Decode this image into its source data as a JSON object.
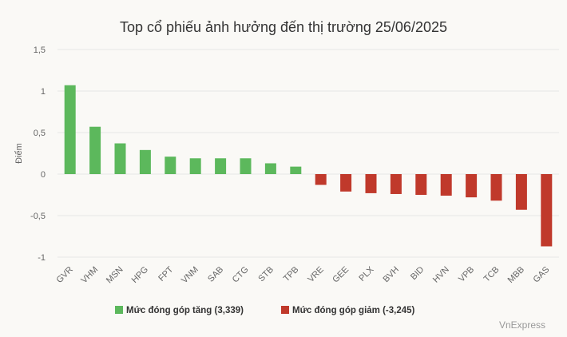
{
  "chart_data": {
    "type": "bar",
    "title": "Top cổ phiếu ảnh hưởng đến thị trường 25/06/2025",
    "ylabel": "Điểm",
    "xlabel": "",
    "ylim": [
      -1,
      1.5
    ],
    "yticks": [
      "1,5",
      "1",
      "0,5",
      "0",
      "-0,5",
      "-1"
    ],
    "ytick_values": [
      1.5,
      1,
      0.5,
      0,
      -0.5,
      -1
    ],
    "categories": [
      "GVR",
      "VHM",
      "MSN",
      "HPG",
      "FPT",
      "VNM",
      "SAB",
      "CTG",
      "STB",
      "TPB",
      "VRE",
      "GEE",
      "PLX",
      "BVH",
      "BID",
      "HVN",
      "VPB",
      "TCB",
      "MBB",
      "GAS"
    ],
    "values": [
      1.07,
      0.57,
      0.37,
      0.29,
      0.21,
      0.19,
      0.19,
      0.19,
      0.13,
      0.09,
      -0.13,
      -0.21,
      -0.23,
      -0.24,
      -0.25,
      -0.26,
      -0.28,
      -0.32,
      -0.43,
      -0.87
    ],
    "series": [
      {
        "name": "Mức đóng góp tăng (3,339)",
        "color": "#5cb85c"
      },
      {
        "name": "Mức đóng góp giảm (-3,245)",
        "color": "#c0392b"
      }
    ],
    "grid": true,
    "legend_position": "bottom"
  },
  "credit": "VnExpress"
}
